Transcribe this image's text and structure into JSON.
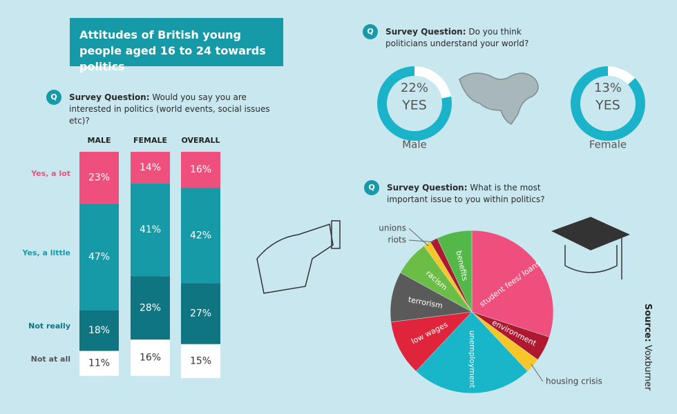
{
  "title": "Attitudes of British young people aged 16 to 24 towards politics",
  "source_label": "Source:",
  "source": "Voxburner",
  "chart_data": [
    {
      "type": "stacked_bar",
      "question_label": "Survey Question:",
      "question": "Would you say you are interested in politics (world events, social issues etc)?",
      "categories": [
        "MALE",
        "FEMALE",
        "OVERALL"
      ],
      "series": [
        {
          "name": "Yes, a lot",
          "color": "#ef4f7c",
          "values": [
            23,
            14,
            16
          ],
          "value_labels": [
            "23%",
            "14%",
            "16%"
          ]
        },
        {
          "name": "Yes, a little",
          "color": "#169aa8",
          "values": [
            47,
            41,
            42
          ],
          "value_labels": [
            "47%",
            "41%",
            "42%"
          ]
        },
        {
          "name": "Not really",
          "color": "#0f7580",
          "values": [
            18,
            28,
            27
          ],
          "value_labels": [
            "18%",
            "28%",
            "27%"
          ]
        },
        {
          "name": "Not at all",
          "color": "#ffffff",
          "values": [
            11,
            16,
            15
          ],
          "value_labels": [
            "11%",
            "16%",
            "15%"
          ]
        }
      ]
    },
    {
      "type": "donut",
      "question_label": "Survey Question:",
      "question": "Do you think politicians understand your world?",
      "categories": [
        "Male",
        "Female"
      ],
      "values": [
        22,
        13
      ],
      "value_labels": [
        "22%",
        "13%"
      ],
      "value_caption": "YES",
      "color": "#1ab3c9"
    },
    {
      "type": "pie",
      "question_label": "Survey Question:",
      "question": "What is the most important issue to you within politics?",
      "categories": [
        "student fees/ loans",
        "environment",
        "housing crisis",
        "unemployment",
        "low wages",
        "terrorism",
        "racism",
        "unions",
        "riots",
        "benefits"
      ],
      "values": [
        30,
        5,
        3,
        24,
        11,
        10,
        7,
        1.5,
        1.5,
        7
      ],
      "colors": [
        "#ef4f7c",
        "#b0182f",
        "#f7c628",
        "#19b5c8",
        "#e0243c",
        "#5a5a5a",
        "#6cbd45",
        "#f7c628",
        "#b0182f",
        "#54b848"
      ]
    }
  ]
}
